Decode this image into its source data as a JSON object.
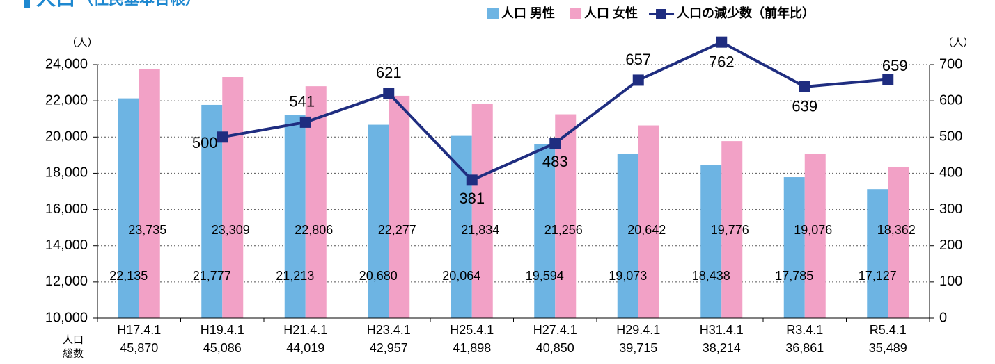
{
  "chart_data": {
    "type": "bar_line",
    "title": "人口",
    "subtitle": "（住民基本台帳）",
    "y_unit": "（人）",
    "y2_unit": "（人）",
    "categories": [
      "H17.4.1",
      "H19.4.1",
      "H21.4.1",
      "H23.4.1",
      "H25.4.1",
      "H27.4.1",
      "H29.4.1",
      "H31.4.1",
      "R3.4.1",
      "R5.4.1"
    ],
    "total_label": [
      "人口",
      "総数"
    ],
    "totals": [
      {
        "value": 45870,
        "label": "45,870"
      },
      {
        "value": 45086,
        "label": "45,086"
      },
      {
        "value": 44019,
        "label": "44,019"
      },
      {
        "value": 42957,
        "label": "42,957"
      },
      {
        "value": 41898,
        "label": "41,898"
      },
      {
        "value": 40850,
        "label": "40,850"
      },
      {
        "value": 39715,
        "label": "39,715"
      },
      {
        "value": 38214,
        "label": "38,214"
      },
      {
        "value": 36861,
        "label": "36,861"
      },
      {
        "value": 35489,
        "label": "35,489"
      }
    ],
    "series": [
      {
        "name": "人口 男性",
        "color": "#6db4e3",
        "kind": "bar",
        "values": [
          22135,
          21777,
          21213,
          20680,
          20064,
          19594,
          19073,
          18438,
          17785,
          17127
        ],
        "value_labels": [
          "22,135",
          "21,777",
          "21,213",
          "20,680",
          "20,064",
          "19,594",
          "19,073",
          "18,438",
          "17,785",
          "17,127"
        ]
      },
      {
        "name": "人口 女性",
        "color": "#f2a1c6",
        "kind": "bar",
        "values": [
          23735,
          23309,
          22806,
          22277,
          21834,
          21256,
          20642,
          19776,
          19076,
          18362
        ],
        "value_labels": [
          "23,735",
          "23,309",
          "22,806",
          "22,277",
          "21,834",
          "21,256",
          "20,642",
          "19,776",
          "19,076",
          "18,362"
        ]
      },
      {
        "name": "人口の減少数（前年比）",
        "color": "#1f2d80",
        "kind": "line",
        "axis": "y2",
        "values": [
          null,
          500,
          541,
          621,
          381,
          483,
          657,
          762,
          639,
          659
        ]
      }
    ],
    "ylim": [
      10000,
      24000
    ],
    "yticks": [
      {
        "value": 10000,
        "label": "10,000"
      },
      {
        "value": 12000,
        "label": "12,000"
      },
      {
        "value": 14000,
        "label": "14,000"
      },
      {
        "value": 16000,
        "label": "16,000"
      },
      {
        "value": 18000,
        "label": "18,000"
      },
      {
        "value": 20000,
        "label": "20,000"
      },
      {
        "value": 22000,
        "label": "22,000"
      },
      {
        "value": 24000,
        "label": "24,000"
      }
    ],
    "y2lim": [
      0,
      700
    ],
    "y2ticks": [
      0,
      100,
      200,
      300,
      400,
      500,
      600,
      700
    ],
    "grid": true
  }
}
